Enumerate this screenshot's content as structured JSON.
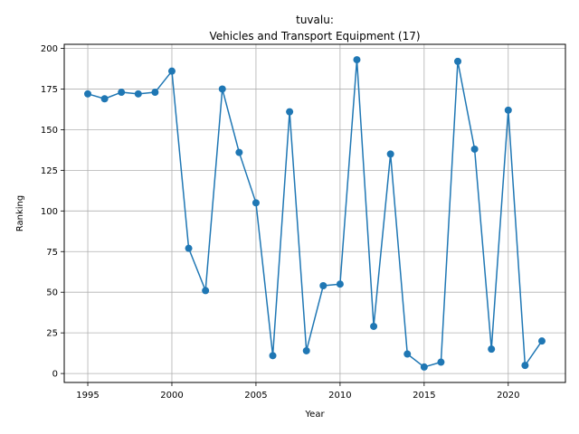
{
  "chart_data": {
    "type": "line",
    "title_line1": "tuvalu:",
    "title_line2": "Vehicles and Transport Equipment (17)",
    "xlabel": "Year",
    "ylabel": "Ranking",
    "xlim": [
      1993.6,
      2023.4
    ],
    "ylim": [
      -5.5,
      202.5
    ],
    "xticks": [
      1995,
      2000,
      2005,
      2010,
      2015,
      2020
    ],
    "yticks": [
      0,
      25,
      50,
      75,
      100,
      125,
      150,
      175,
      200
    ],
    "grid": true,
    "series": [
      {
        "color": "#1f77b4",
        "marker": "circle",
        "x": [
          1995,
          1996,
          1997,
          1998,
          1999,
          2000,
          2001,
          2002,
          2003,
          2004,
          2005,
          2006,
          2007,
          2008,
          2009,
          2010,
          2011,
          2012,
          2013,
          2014,
          2015,
          2016,
          2017,
          2018,
          2019,
          2020,
          2021,
          2022
        ],
        "y": [
          172,
          169,
          173,
          172,
          173,
          186,
          77,
          51,
          175,
          136,
          105,
          11,
          161,
          14,
          54,
          55,
          193,
          29,
          135,
          12,
          4,
          7,
          192,
          138,
          15,
          162,
          5,
          20
        ]
      }
    ]
  }
}
